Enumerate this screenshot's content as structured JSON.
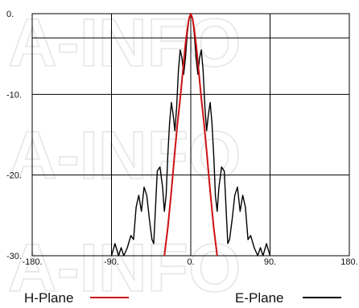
{
  "chart_data": {
    "type": "line",
    "title": "",
    "xlabel": "",
    "ylabel": "",
    "xlim": [
      -180,
      180
    ],
    "ylim": [
      -30,
      0
    ],
    "grid": true,
    "x_ticks": [
      -180,
      -90,
      0,
      90,
      180
    ],
    "x_tick_labels": [
      "-180.",
      "-90.",
      "0.",
      "90.",
      "180."
    ],
    "y_ticks": [
      0,
      -10,
      -20,
      -30
    ],
    "y_tick_labels": [
      "0.",
      "-10.",
      "-20.",
      "-30."
    ],
    "legend_position": "bottom",
    "watermark": "A-INFO",
    "series": [
      {
        "name": "H-Plane",
        "color": "#cc1111",
        "x": [
          -30,
          -26,
          -22,
          -18,
          -15,
          -12,
          -10,
          -8,
          -6,
          -4,
          -2,
          0,
          2,
          4,
          6,
          8,
          10,
          12,
          15,
          18,
          22,
          26,
          30
        ],
        "y": [
          -30,
          -26.5,
          -22,
          -17,
          -13.5,
          -10.5,
          -8.2,
          -6,
          -3.8,
          -2,
          -0.6,
          0,
          -0.6,
          -2,
          -3.8,
          -6,
          -8.2,
          -10.5,
          -13.5,
          -17,
          -22,
          -26.5,
          -30
        ]
      },
      {
        "name": "E-Plane",
        "color": "#000000",
        "x": [
          -90,
          -86,
          -82,
          -79,
          -76,
          -72,
          -68,
          -65,
          -62,
          -59,
          -56,
          -53,
          -50,
          -47,
          -44,
          -42,
          -40,
          -38,
          -35,
          -32,
          -30,
          -28,
          -26,
          -24,
          -22,
          -20,
          -18,
          -16,
          -14,
          -12,
          -10,
          -8,
          -6,
          -4,
          -2,
          0,
          2,
          4,
          6,
          8,
          10,
          12,
          14,
          16,
          18,
          20,
          22,
          24,
          26,
          28,
          30,
          32,
          35,
          38,
          40,
          42,
          44,
          47,
          50,
          53,
          56,
          59,
          62,
          65,
          68,
          72,
          76,
          79,
          82,
          86,
          90
        ],
        "y": [
          -30,
          -28.5,
          -30,
          -29,
          -30,
          -29,
          -27.5,
          -28,
          -24,
          -22.5,
          -24.5,
          -21.5,
          -22.5,
          -25.5,
          -28,
          -28.5,
          -24,
          -19.5,
          -19,
          -21.5,
          -24.5,
          -22.5,
          -17.5,
          -13.5,
          -11,
          -12.5,
          -14.5,
          -11.5,
          -7,
          -4.5,
          -5.5,
          -7.5,
          -5.5,
          -2.5,
          -0.6,
          0,
          -0.6,
          -2.5,
          -5.5,
          -7.5,
          -5.5,
          -4.5,
          -7,
          -11.5,
          -14.5,
          -12.5,
          -11,
          -13.5,
          -17.5,
          -22.5,
          -24.5,
          -21.5,
          -19,
          -19.5,
          -24,
          -28.5,
          -28,
          -25.5,
          -22.5,
          -21.5,
          -24.5,
          -22.5,
          -24,
          -28,
          -27.5,
          -29,
          -30,
          -29,
          -30,
          -28.5,
          -30
        ]
      }
    ]
  }
}
